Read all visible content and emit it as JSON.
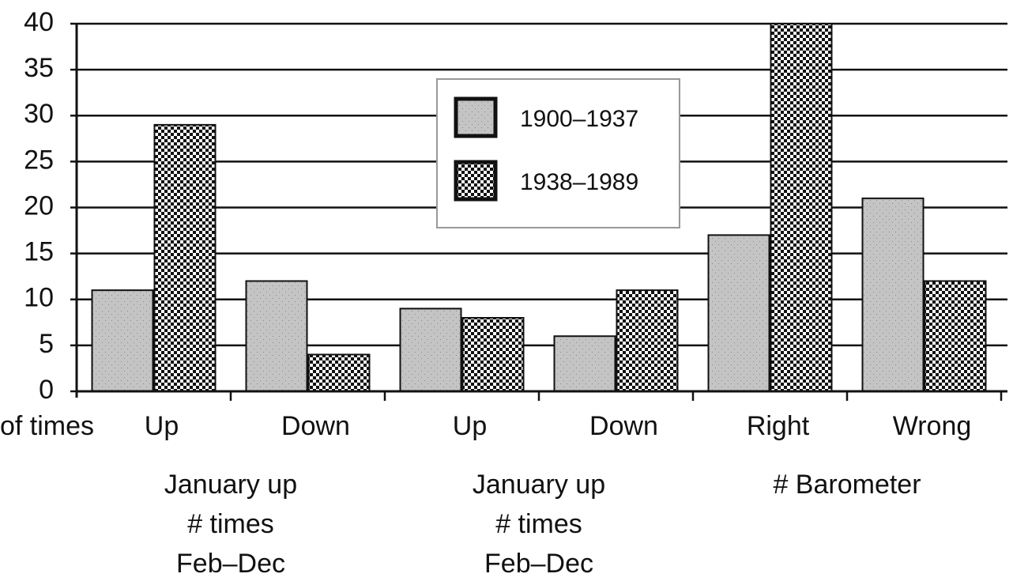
{
  "chart_data": {
    "type": "bar",
    "categories": [
      "Up",
      "Down",
      "Up",
      "Down",
      "Right",
      "Wrong"
    ],
    "series": [
      {
        "name": "1900–1937",
        "color": "#c4c4c4",
        "values": [
          11,
          12,
          9,
          6,
          17,
          21
        ]
      },
      {
        "name": "1938–1989",
        "color": "#111111",
        "values": [
          29,
          4,
          8,
          11,
          40,
          12
        ]
      }
    ],
    "groups": [
      {
        "label": [
          "January up",
          "# times",
          "Feb–Dec"
        ]
      },
      {
        "label": [
          "January up",
          "# times",
          "Feb–Dec"
        ]
      },
      {
        "label": [
          "# Barometer"
        ]
      }
    ],
    "x_label": "of times",
    "ylim": [
      0,
      40
    ],
    "yticks": [
      0,
      5,
      10,
      15,
      20,
      25,
      30,
      35,
      40
    ],
    "grid": true,
    "legend": "top-center"
  }
}
